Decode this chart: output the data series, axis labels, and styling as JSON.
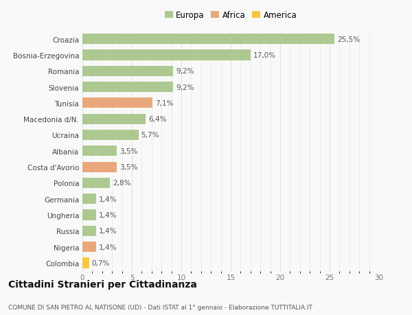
{
  "categories": [
    "Colombia",
    "Nigeria",
    "Russia",
    "Ungheria",
    "Germania",
    "Polonia",
    "Costa d'Avorio",
    "Albania",
    "Ucraina",
    "Macedonia d/N.",
    "Tunisia",
    "Slovenia",
    "Romania",
    "Bosnia-Erzegovina",
    "Croazia"
  ],
  "values": [
    0.7,
    1.4,
    1.4,
    1.4,
    1.4,
    2.8,
    3.5,
    3.5,
    5.7,
    6.4,
    7.1,
    9.2,
    9.2,
    17.0,
    25.5
  ],
  "continents": [
    "America",
    "Africa",
    "Europa",
    "Europa",
    "Europa",
    "Europa",
    "Africa",
    "Europa",
    "Europa",
    "Europa",
    "Africa",
    "Europa",
    "Europa",
    "Europa",
    "Europa"
  ],
  "bar_colors": {
    "Europa": "#adc991",
    "Africa": "#e8a87c",
    "America": "#f5c842"
  },
  "label_texts": [
    "0,7%",
    "1,4%",
    "1,4%",
    "1,4%",
    "1,4%",
    "2,8%",
    "3,5%",
    "3,5%",
    "5,7%",
    "6,4%",
    "7,1%",
    "9,2%",
    "9,2%",
    "17,0%",
    "25,5%"
  ],
  "xlim": [
    0,
    30
  ],
  "xticks": [
    0,
    5,
    10,
    15,
    20,
    25,
    30
  ],
  "title": "Cittadini Stranieri per Cittadinanza",
  "subtitle": "COMUNE DI SAN PIETRO AL NATISONE (UD) - Dati ISTAT al 1° gennaio - Elaborazione TUTTITALIA.IT",
  "legend_labels": [
    "Europa",
    "Africa",
    "America"
  ],
  "legend_colors": [
    "#adc991",
    "#e8a87c",
    "#f5c842"
  ],
  "background_color": "#f9f9f9",
  "grid_color": "#e0e0e0",
  "bar_height": 0.65,
  "label_fontsize": 7.5,
  "tick_label_fontsize": 7.5,
  "axis_tick_fontsize": 7.5,
  "title_fontsize": 10,
  "subtitle_fontsize": 6.5,
  "legend_fontsize": 8.5
}
